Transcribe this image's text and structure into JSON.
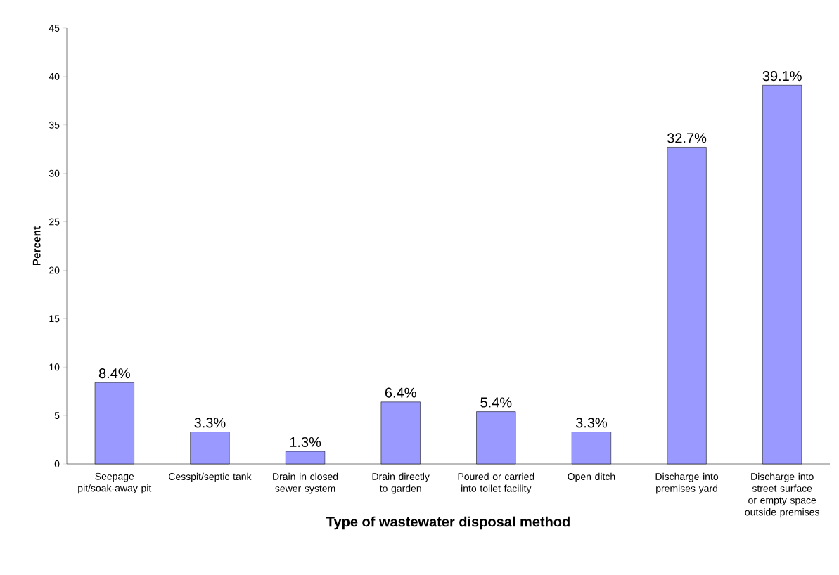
{
  "chart_data": {
    "type": "bar",
    "categories": [
      "Seepage pit/soak-away pit",
      "Cesspit/septic tank",
      "Drain in closed sewer system",
      "Drain directly to garden",
      "Poured or carried into toilet facility",
      "Open ditch",
      "Discharge into premises yard",
      "Discharge into street surface or empty space outside premises"
    ],
    "values": [
      8.4,
      3.3,
      1.3,
      6.4,
      5.4,
      3.3,
      32.7,
      39.1
    ],
    "value_labels": [
      "8.4%",
      "3.3%",
      "1.3%",
      "6.4%",
      "5.4%",
      "3.3%",
      "32.7%",
      "39.1%"
    ],
    "color": "#9999ff",
    "xlabel": "Type of wastewater disposal method",
    "ylabel": "Percent",
    "ylim": [
      0,
      45
    ],
    "yticks": [
      0,
      5,
      10,
      15,
      20,
      25,
      30,
      35,
      40,
      45
    ]
  }
}
